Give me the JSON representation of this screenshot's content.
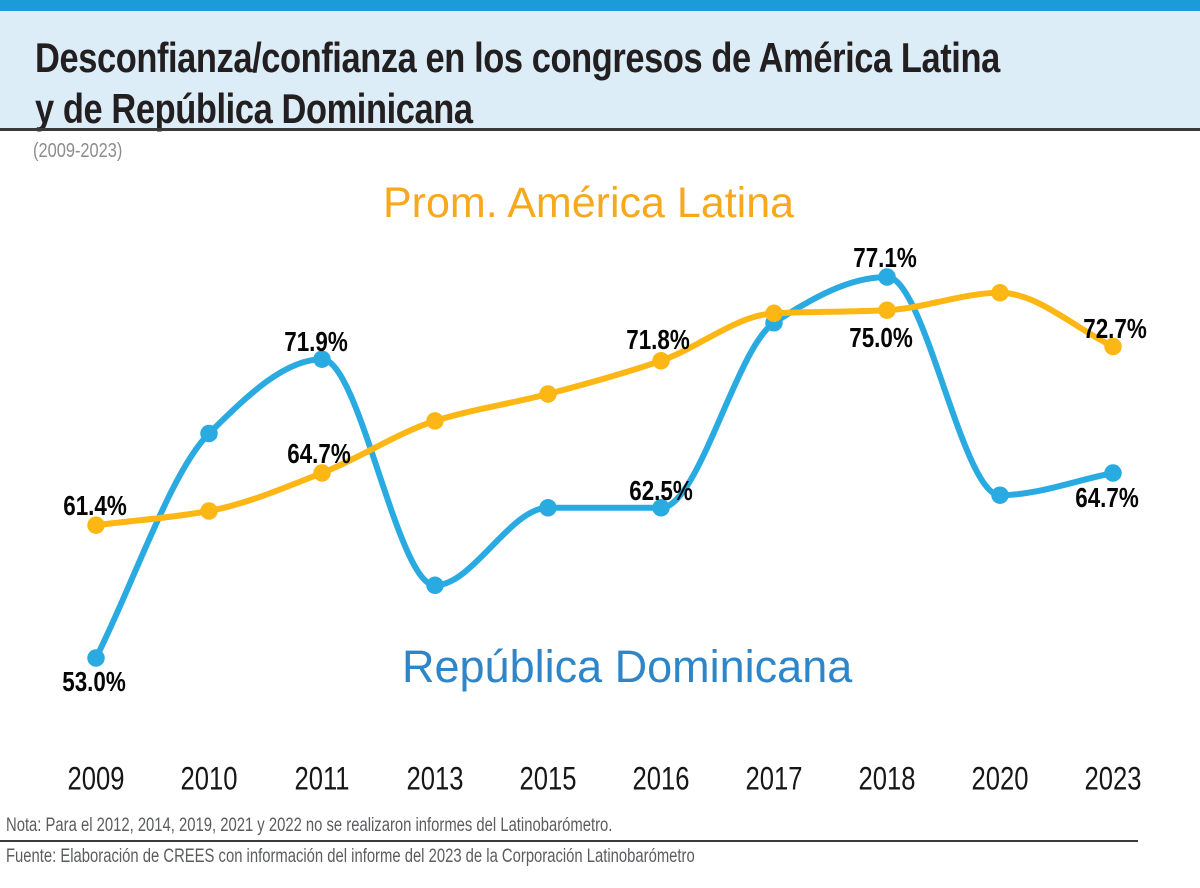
{
  "header": {
    "title_line1": "Desconfianza/confianza en los congresos de América Latina",
    "title_line2": "y de República Dominicana",
    "subtitle": "(2009-2023)"
  },
  "chart_data": {
    "type": "line",
    "x_axis": {
      "categories": [
        "2009",
        "2010",
        "2011",
        "2013",
        "2015",
        "2016",
        "2017",
        "2018",
        "2020",
        "2023"
      ]
    },
    "y_axis": {
      "visible": false,
      "unit": "%",
      "approx_range": [
        50,
        80
      ]
    },
    "grid": false,
    "legend": "inline-series-labels",
    "series": [
      {
        "id": "prom-america-latina",
        "name": "Prom. América Latina",
        "line_color": "#FDB714",
        "name_color": "#F7A81D",
        "draw_order": 1,
        "values": [
          61.4,
          62.3,
          64.7,
          68.0,
          69.7,
          71.8,
          74.8,
          75.0,
          76.1,
          72.7
        ],
        "point_labels": [
          {
            "index": 0,
            "text": "61.4%",
            "dx": -1,
            "dy": -19
          },
          {
            "index": 2,
            "text": "64.7%",
            "dx": -3,
            "dy": -19
          },
          {
            "index": 5,
            "text": "71.8%",
            "dx": -3,
            "dy": -21
          },
          {
            "index": 7,
            "text": "75.0%",
            "dx": -6,
            "dy": 28
          },
          {
            "index": 9,
            "text": "72.7%",
            "dx": 2,
            "dy": -18
          }
        ]
      },
      {
        "id": "republica-dominicana",
        "name": "República Dominicana",
        "line_color": "#29ABE2",
        "name_color": "#2E86C8",
        "draw_order": 0,
        "values": [
          53.0,
          67.2,
          71.9,
          57.6,
          62.5,
          62.5,
          74.2,
          77.1,
          63.3,
          64.7
        ],
        "point_labels": [
          {
            "index": 0,
            "text": "53.0%",
            "dx": -2,
            "dy": 24
          },
          {
            "index": 2,
            "text": "71.9%",
            "dx": -6,
            "dy": -17
          },
          {
            "index": 5,
            "text": "62.5%",
            "dx": 0,
            "dy": -17
          },
          {
            "index": 7,
            "text": "77.1%",
            "dx": -2,
            "dy": -19
          },
          {
            "index": 9,
            "text": "64.7%",
            "dx": -6,
            "dy": 25
          }
        ]
      }
    ]
  },
  "footer": {
    "note": "Nota: Para el 2012, 2014, 2019, 2021 y 2022 no se realizaron informes del Latinobarómetro.",
    "source": "Fuente: Elaboración de CREES con información del informe del 2023 de la Corporación Latinobarómetro"
  },
  "colors": {
    "top_bar": "#1B9BD7",
    "header_background": "#DCEDF8",
    "title_text": "#231F20",
    "rule": "#3A3A3A",
    "muted_text": "#5B5C5E",
    "subtitle_text": "#8C8C8E"
  }
}
